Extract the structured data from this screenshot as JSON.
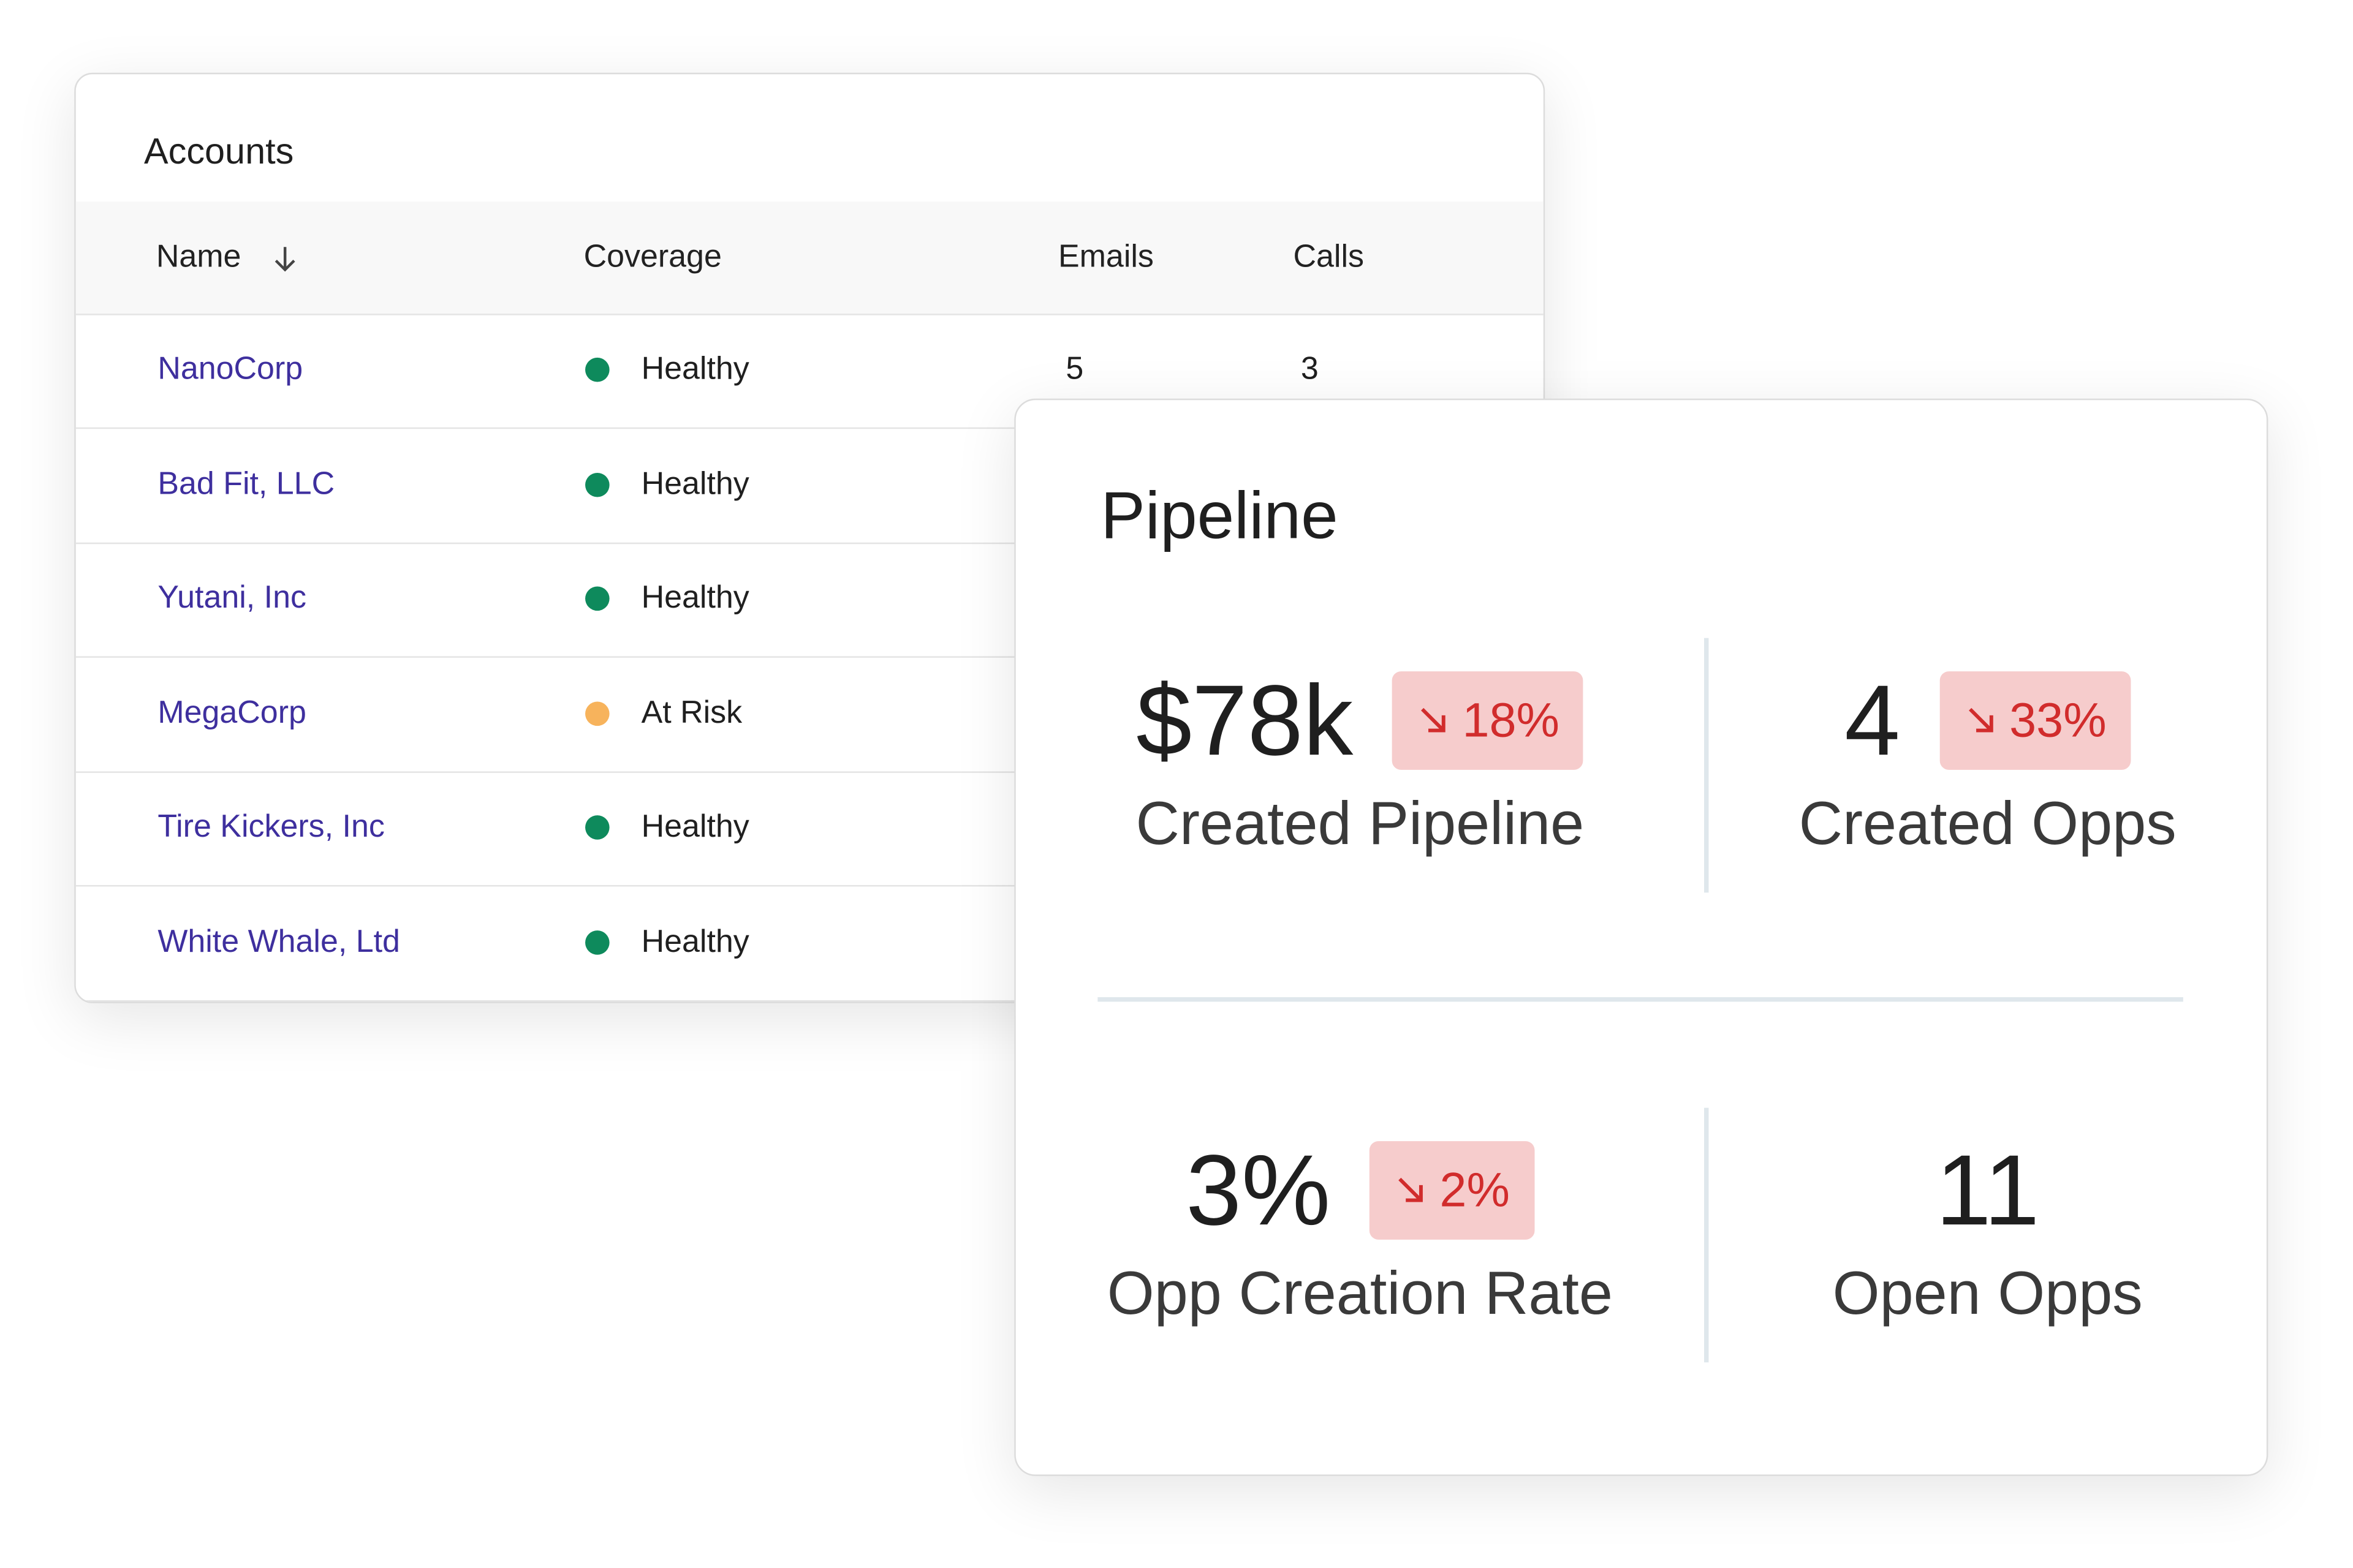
{
  "accounts": {
    "title": "Accounts",
    "columns": [
      "Name",
      "Coverage",
      "Emails",
      "Calls"
    ],
    "rows": [
      {
        "name": "NanoCorp",
        "coverage": "Healthy",
        "dot_color": "#0e8a5c",
        "emails": "5",
        "calls": "3"
      },
      {
        "name": "Bad Fit, LLC",
        "coverage": "Healthy",
        "dot_color": "#0e8a5c"
      },
      {
        "name": "Yutani, Inc",
        "coverage": "Healthy",
        "dot_color": "#0e8a5c"
      },
      {
        "name": "MegaCorp",
        "coverage": "At Risk",
        "dot_color": "#f7b35c"
      },
      {
        "name": "Tire Kickers, Inc",
        "coverage": "Healthy",
        "dot_color": "#0e8a5c"
      },
      {
        "name": "White Whale, Ltd",
        "coverage": "Healthy",
        "dot_color": "#0e8a5c"
      }
    ]
  },
  "pipeline": {
    "title": "Pipeline",
    "metrics": [
      {
        "value": "$78k",
        "change": "18%",
        "label": "Created Pipeline"
      },
      {
        "value": "4",
        "change": "33%",
        "label": "Created Opps"
      },
      {
        "value": "3%",
        "change": "2%",
        "label": "Opp Creation Rate"
      },
      {
        "value": "11",
        "label": "Open Opps"
      }
    ]
  }
}
